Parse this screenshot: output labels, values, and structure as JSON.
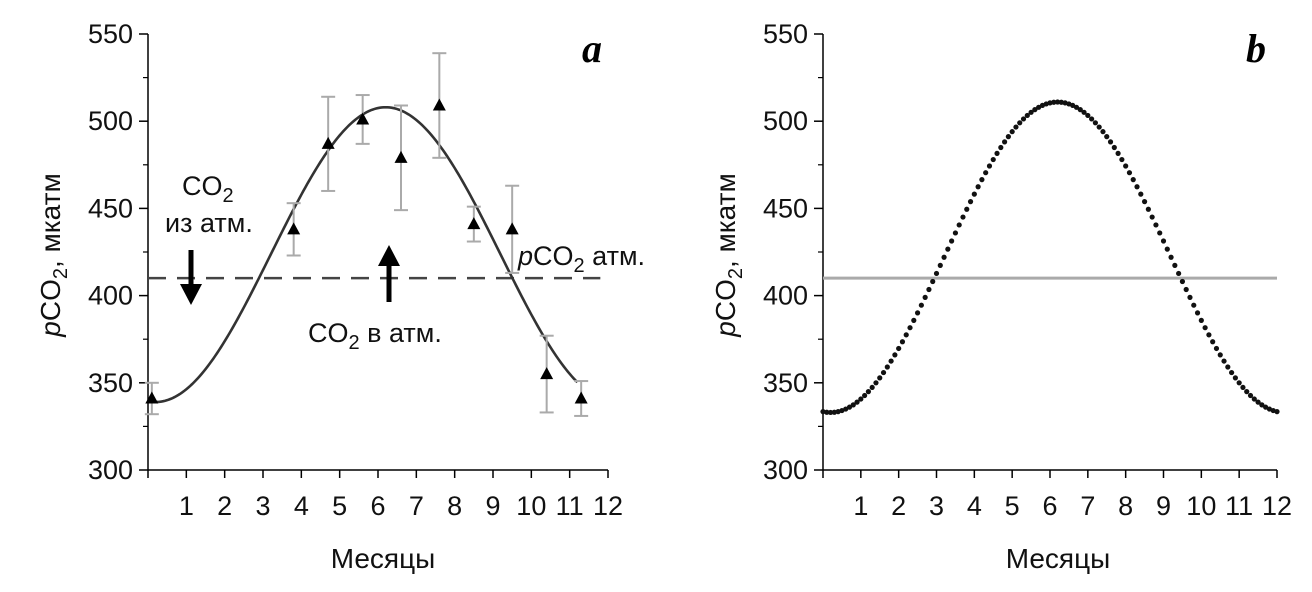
{
  "chart_data": [
    {
      "type": "scatter",
      "panel_label": "a",
      "xlabel": "Месяцы",
      "ylabel_italic": "p",
      "ylabel_main": "CO",
      "ylabel_sub": "2",
      "ylabel_rest": ", мкатм",
      "xlim": [
        0,
        12
      ],
      "ylim": [
        300,
        550
      ],
      "xticks": [
        "1",
        "2",
        "3",
        "4",
        "5",
        "6",
        "7",
        "8",
        "9",
        "10",
        "11",
        "12"
      ],
      "yticks": [
        "300",
        "350",
        "400",
        "450",
        "500",
        "550"
      ],
      "points": [
        {
          "x": 0.1,
          "y": 341,
          "err": 9
        },
        {
          "x": 3.8,
          "y": 438,
          "err": 15
        },
        {
          "x": 4.7,
          "y": 487,
          "err": 27
        },
        {
          "x": 5.6,
          "y": 501,
          "err": 14
        },
        {
          "x": 6.6,
          "y": 479,
          "err": 30
        },
        {
          "x": 7.6,
          "y": 509,
          "err": 30
        },
        {
          "x": 8.5,
          "y": 441,
          "err": 10
        },
        {
          "x": 9.5,
          "y": 438,
          "err": 25
        },
        {
          "x": 10.4,
          "y": 355,
          "err": 22
        },
        {
          "x": 11.3,
          "y": 341,
          "err": 10
        }
      ],
      "fit_curve": {
        "mean": 423.5,
        "amplitude": 84.5,
        "peak_month": 6.2
      },
      "atmosphere_level": 410,
      "annotations": {
        "from_atm_line1_main": "CO",
        "from_atm_line1_sub": "2",
        "from_atm_line2": "из атм.",
        "to_atm_main": "CO",
        "to_atm_sub": "2",
        "to_atm_rest": " в атм.",
        "atm_italic": "p",
        "atm_main": "CO",
        "atm_sub": "2",
        "atm_rest": " атм."
      }
    },
    {
      "type": "line",
      "panel_label": "b",
      "xlabel": "Месяцы",
      "ylabel_italic": "p",
      "ylabel_main": "CO",
      "ylabel_sub": "2",
      "ylabel_rest": ", мкатм",
      "xlim": [
        0,
        12
      ],
      "ylim": [
        300,
        550
      ],
      "xticks": [
        "1",
        "2",
        "3",
        "4",
        "5",
        "6",
        "7",
        "8",
        "9",
        "10",
        "11",
        "12"
      ],
      "yticks": [
        "300",
        "350",
        "400",
        "450",
        "500",
        "550"
      ],
      "model_curve": {
        "mean": 422,
        "amplitude": 89,
        "peak_month": 6.2,
        "step": 0.1
      },
      "atmosphere_level": 410
    }
  ]
}
